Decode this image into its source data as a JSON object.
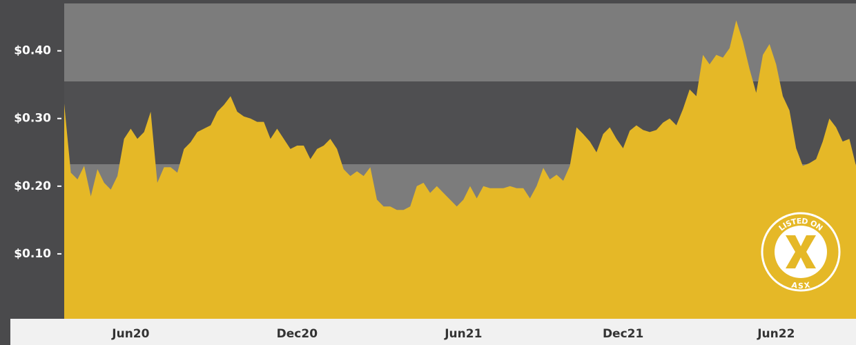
{
  "chart_data": {
    "type": "area",
    "categories": [
      null,
      null,
      null,
      null,
      null,
      null,
      null,
      null,
      null,
      null,
      "Jun20",
      null,
      null,
      null,
      null,
      null,
      null,
      null,
      null,
      null,
      null,
      null,
      null,
      null,
      null,
      null,
      null,
      null,
      null,
      null,
      null,
      null,
      null,
      null,
      null,
      "Dec20",
      null,
      null,
      null,
      null,
      null,
      null,
      null,
      null,
      null,
      null,
      null,
      null,
      null,
      null,
      null,
      null,
      null,
      null,
      null,
      null,
      null,
      null,
      null,
      null,
      "Jun21",
      null,
      null,
      null,
      null,
      null,
      null,
      null,
      null,
      null,
      null,
      null,
      null,
      null,
      null,
      null,
      null,
      null,
      null,
      null,
      null,
      null,
      null,
      null,
      "Dec21",
      null,
      null,
      null,
      null,
      null,
      null,
      null,
      null,
      null,
      null,
      null,
      null,
      null,
      null,
      null,
      null,
      null,
      null,
      null,
      null,
      null,
      null,
      "Jun22",
      null,
      null,
      null,
      null,
      null,
      null,
      null,
      null,
      null,
      null,
      null,
      null
    ],
    "values": [
      0.322,
      0.22,
      0.21,
      0.23,
      0.185,
      0.225,
      0.205,
      0.195,
      0.215,
      0.27,
      0.285,
      0.27,
      0.28,
      0.31,
      0.205,
      0.228,
      0.228,
      0.22,
      0.255,
      0.265,
      0.28,
      0.285,
      0.29,
      0.31,
      0.32,
      0.333,
      0.31,
      0.303,
      0.3,
      0.295,
      0.295,
      0.27,
      0.285,
      0.27,
      0.255,
      0.26,
      0.26,
      0.24,
      0.255,
      0.26,
      0.27,
      0.255,
      0.225,
      0.215,
      0.222,
      0.215,
      0.228,
      0.18,
      0.17,
      0.17,
      0.165,
      0.165,
      0.17,
      0.2,
      0.205,
      0.19,
      0.2,
      0.19,
      0.18,
      0.17,
      0.18,
      0.2,
      0.182,
      0.2,
      0.197,
      0.197,
      0.197,
      0.2,
      0.197,
      0.197,
      0.182,
      0.2,
      0.227,
      0.21,
      0.217,
      0.208,
      0.23,
      0.287,
      0.277,
      0.266,
      0.25,
      0.277,
      0.287,
      0.27,
      0.256,
      0.282,
      0.29,
      0.283,
      0.28,
      0.283,
      0.294,
      0.3,
      0.29,
      0.314,
      0.343,
      0.333,
      0.394,
      0.38,
      0.394,
      0.39,
      0.404,
      0.445,
      0.414,
      0.373,
      0.338,
      0.394,
      0.41,
      0.38,
      0.333,
      0.312,
      0.256,
      0.23,
      0.234,
      0.24,
      0.266,
      0.3,
      0.287,
      0.266,
      0.27,
      0.23
    ],
    "color": "#e5b827",
    "ylim": [
      0,
      0.47
    ],
    "yticks": [
      {
        "value": 0.1,
        "label": "$0.10"
      },
      {
        "value": 0.2,
        "label": "$0.20"
      },
      {
        "value": 0.3,
        "label": "$0.30"
      },
      {
        "value": 0.4,
        "label": "$0.40"
      }
    ],
    "badge": {
      "top": "LISTED ON",
      "bottom": "ASX"
    }
  }
}
